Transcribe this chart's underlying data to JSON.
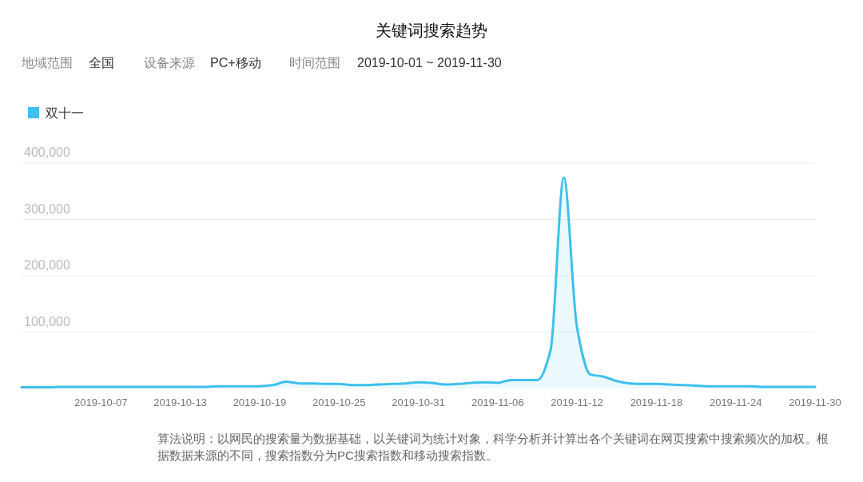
{
  "chart_data": {
    "type": "area",
    "title": "关键词搜索趋势",
    "annotations": [
      "地域范围",
      "全国",
      "设备来源",
      "PC+移动",
      "时间范围",
      "2019-10-01 ~ 2019-11-30",
      "算法说明：以网民的搜索量为数据基础，以关键词为统计对象，科学分析并计算出各个关键词在网页搜索中搜索频次的加权。根据数据来源的不同，搜索指数分为PC搜索指数和移动搜索指数。"
    ],
    "xlim": [
      "2019-10-01",
      "2019-11-30"
    ],
    "x": [
      "2019-10-01",
      "2019-10-02",
      "2019-10-03",
      "2019-10-04",
      "2019-10-05",
      "2019-10-06",
      "2019-10-07",
      "2019-10-08",
      "2019-10-09",
      "2019-10-10",
      "2019-10-11",
      "2019-10-12",
      "2019-10-13",
      "2019-10-14",
      "2019-10-15",
      "2019-10-16",
      "2019-10-17",
      "2019-10-18",
      "2019-10-19",
      "2019-10-20",
      "2019-10-21",
      "2019-10-22",
      "2019-10-23",
      "2019-10-24",
      "2019-10-25",
      "2019-10-26",
      "2019-10-27",
      "2019-10-28",
      "2019-10-29",
      "2019-10-30",
      "2019-10-31",
      "2019-11-01",
      "2019-11-02",
      "2019-11-03",
      "2019-11-04",
      "2019-11-05",
      "2019-11-06",
      "2019-11-07",
      "2019-11-08",
      "2019-11-09",
      "2019-11-10",
      "2019-11-11",
      "2019-11-12",
      "2019-11-13",
      "2019-11-14",
      "2019-11-15",
      "2019-11-16",
      "2019-11-17",
      "2019-11-18",
      "2019-11-19",
      "2019-11-20",
      "2019-11-21",
      "2019-11-22",
      "2019-11-23",
      "2019-11-24",
      "2019-11-25",
      "2019-11-26",
      "2019-11-27",
      "2019-11-28",
      "2019-11-29",
      "2019-11-30"
    ],
    "xticks": [
      "2019-10-07",
      "2019-10-13",
      "2019-10-19",
      "2019-10-25",
      "2019-10-31",
      "2019-11-06",
      "2019-11-12",
      "2019-11-18",
      "2019-11-24",
      "2019-11-30"
    ],
    "ylim": [
      0,
      400000
    ],
    "yticks": [
      {
        "value": 100000,
        "label": "100,000"
      },
      {
        "value": 200000,
        "label": "200,000"
      },
      {
        "value": 300000,
        "label": "300,000"
      },
      {
        "value": 400000,
        "label": "400,000"
      }
    ],
    "grid": "y",
    "legend": "top left",
    "marker": "none",
    "series": [
      {
        "name": "双十一",
        "color": "#3ec0ec",
        "values": [
          2000,
          2000,
          2000,
          3000,
          3000,
          3000,
          3000,
          3000,
          3000,
          3000,
          3000,
          3000,
          3000,
          3000,
          3000,
          4000,
          4000,
          4000,
          4000,
          6000,
          12000,
          9000,
          9000,
          8000,
          8000,
          6000,
          6000,
          7000,
          8000,
          9000,
          11000,
          10000,
          7000,
          8000,
          10000,
          11000,
          10000,
          15000,
          15000,
          15000,
          68000,
          374000,
          108000,
          25000,
          21000,
          13000,
          9000,
          8000,
          8000,
          7000,
          6000,
          5000,
          4000,
          4000,
          4000,
          4000,
          3000,
          3000,
          3000,
          3000,
          3000
        ]
      }
    ]
  }
}
